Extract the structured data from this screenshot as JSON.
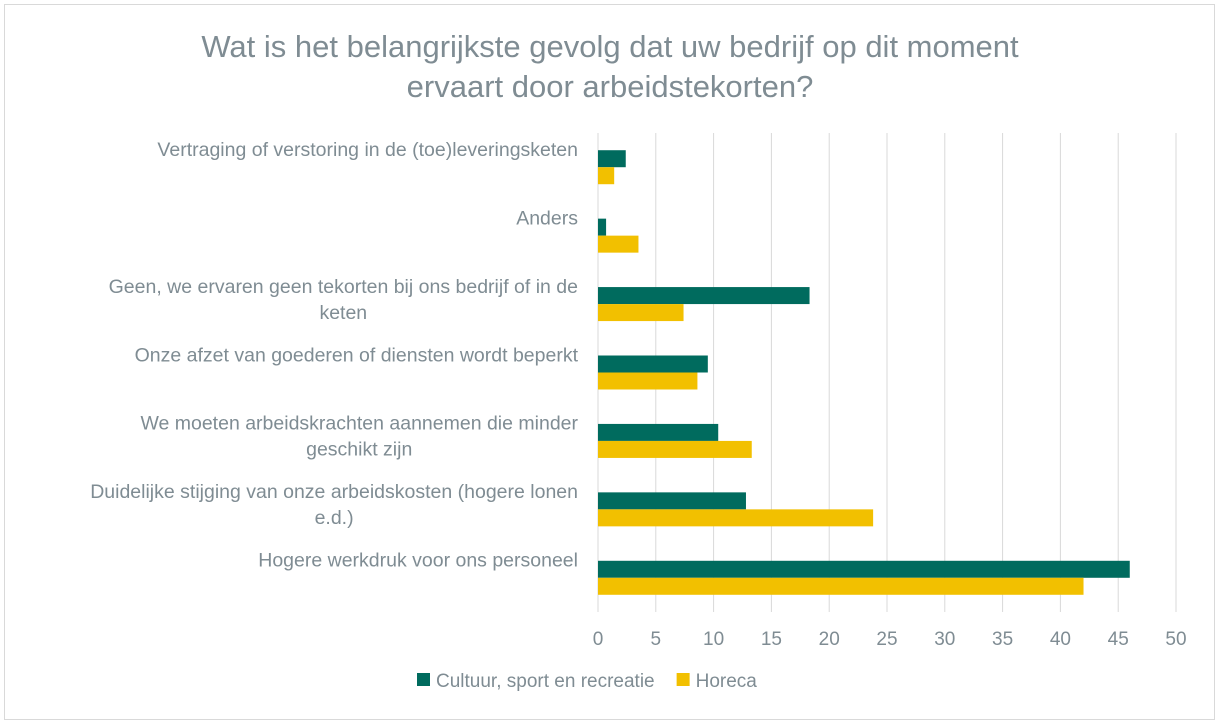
{
  "chart_data": {
    "type": "bar",
    "orientation": "horizontal",
    "title": [
      "Wat is het belangrijkste gevolg dat uw bedrijf op dit moment",
      "ervaart door arbeidstekorten?"
    ],
    "categories": [
      [
        "Vertraging of verstoring in de (toe)leveringsketen"
      ],
      [
        "Anders"
      ],
      [
        "Geen, we ervaren geen tekorten bij ons bedrijf of in de",
        "keten"
      ],
      [
        "Onze afzet van goederen of diensten wordt beperkt"
      ],
      [
        "We moeten arbeidskrachten aannemen die minder",
        "geschikt zijn"
      ],
      [
        "Duidelijke stijging van onze arbeidskosten (hogere lonen",
        "e.d.)"
      ],
      [
        "Hogere werkdruk voor ons personeel"
      ]
    ],
    "series": [
      {
        "name": "Cultuur, sport en recreatie",
        "color": "#006b5e",
        "values": [
          2.4,
          0.7,
          18.3,
          9.5,
          10.4,
          12.8,
          46.0
        ]
      },
      {
        "name": "Horeca",
        "color": "#f2c000",
        "values": [
          1.4,
          3.5,
          7.4,
          8.6,
          13.3,
          23.8,
          42.0
        ]
      }
    ],
    "xlim": [
      0,
      50
    ],
    "xticks": [
      "0",
      "5",
      "10",
      "15",
      "20",
      "25",
      "30",
      "35",
      "40",
      "45",
      "50"
    ],
    "grid": true,
    "legend_position": "bottom"
  }
}
